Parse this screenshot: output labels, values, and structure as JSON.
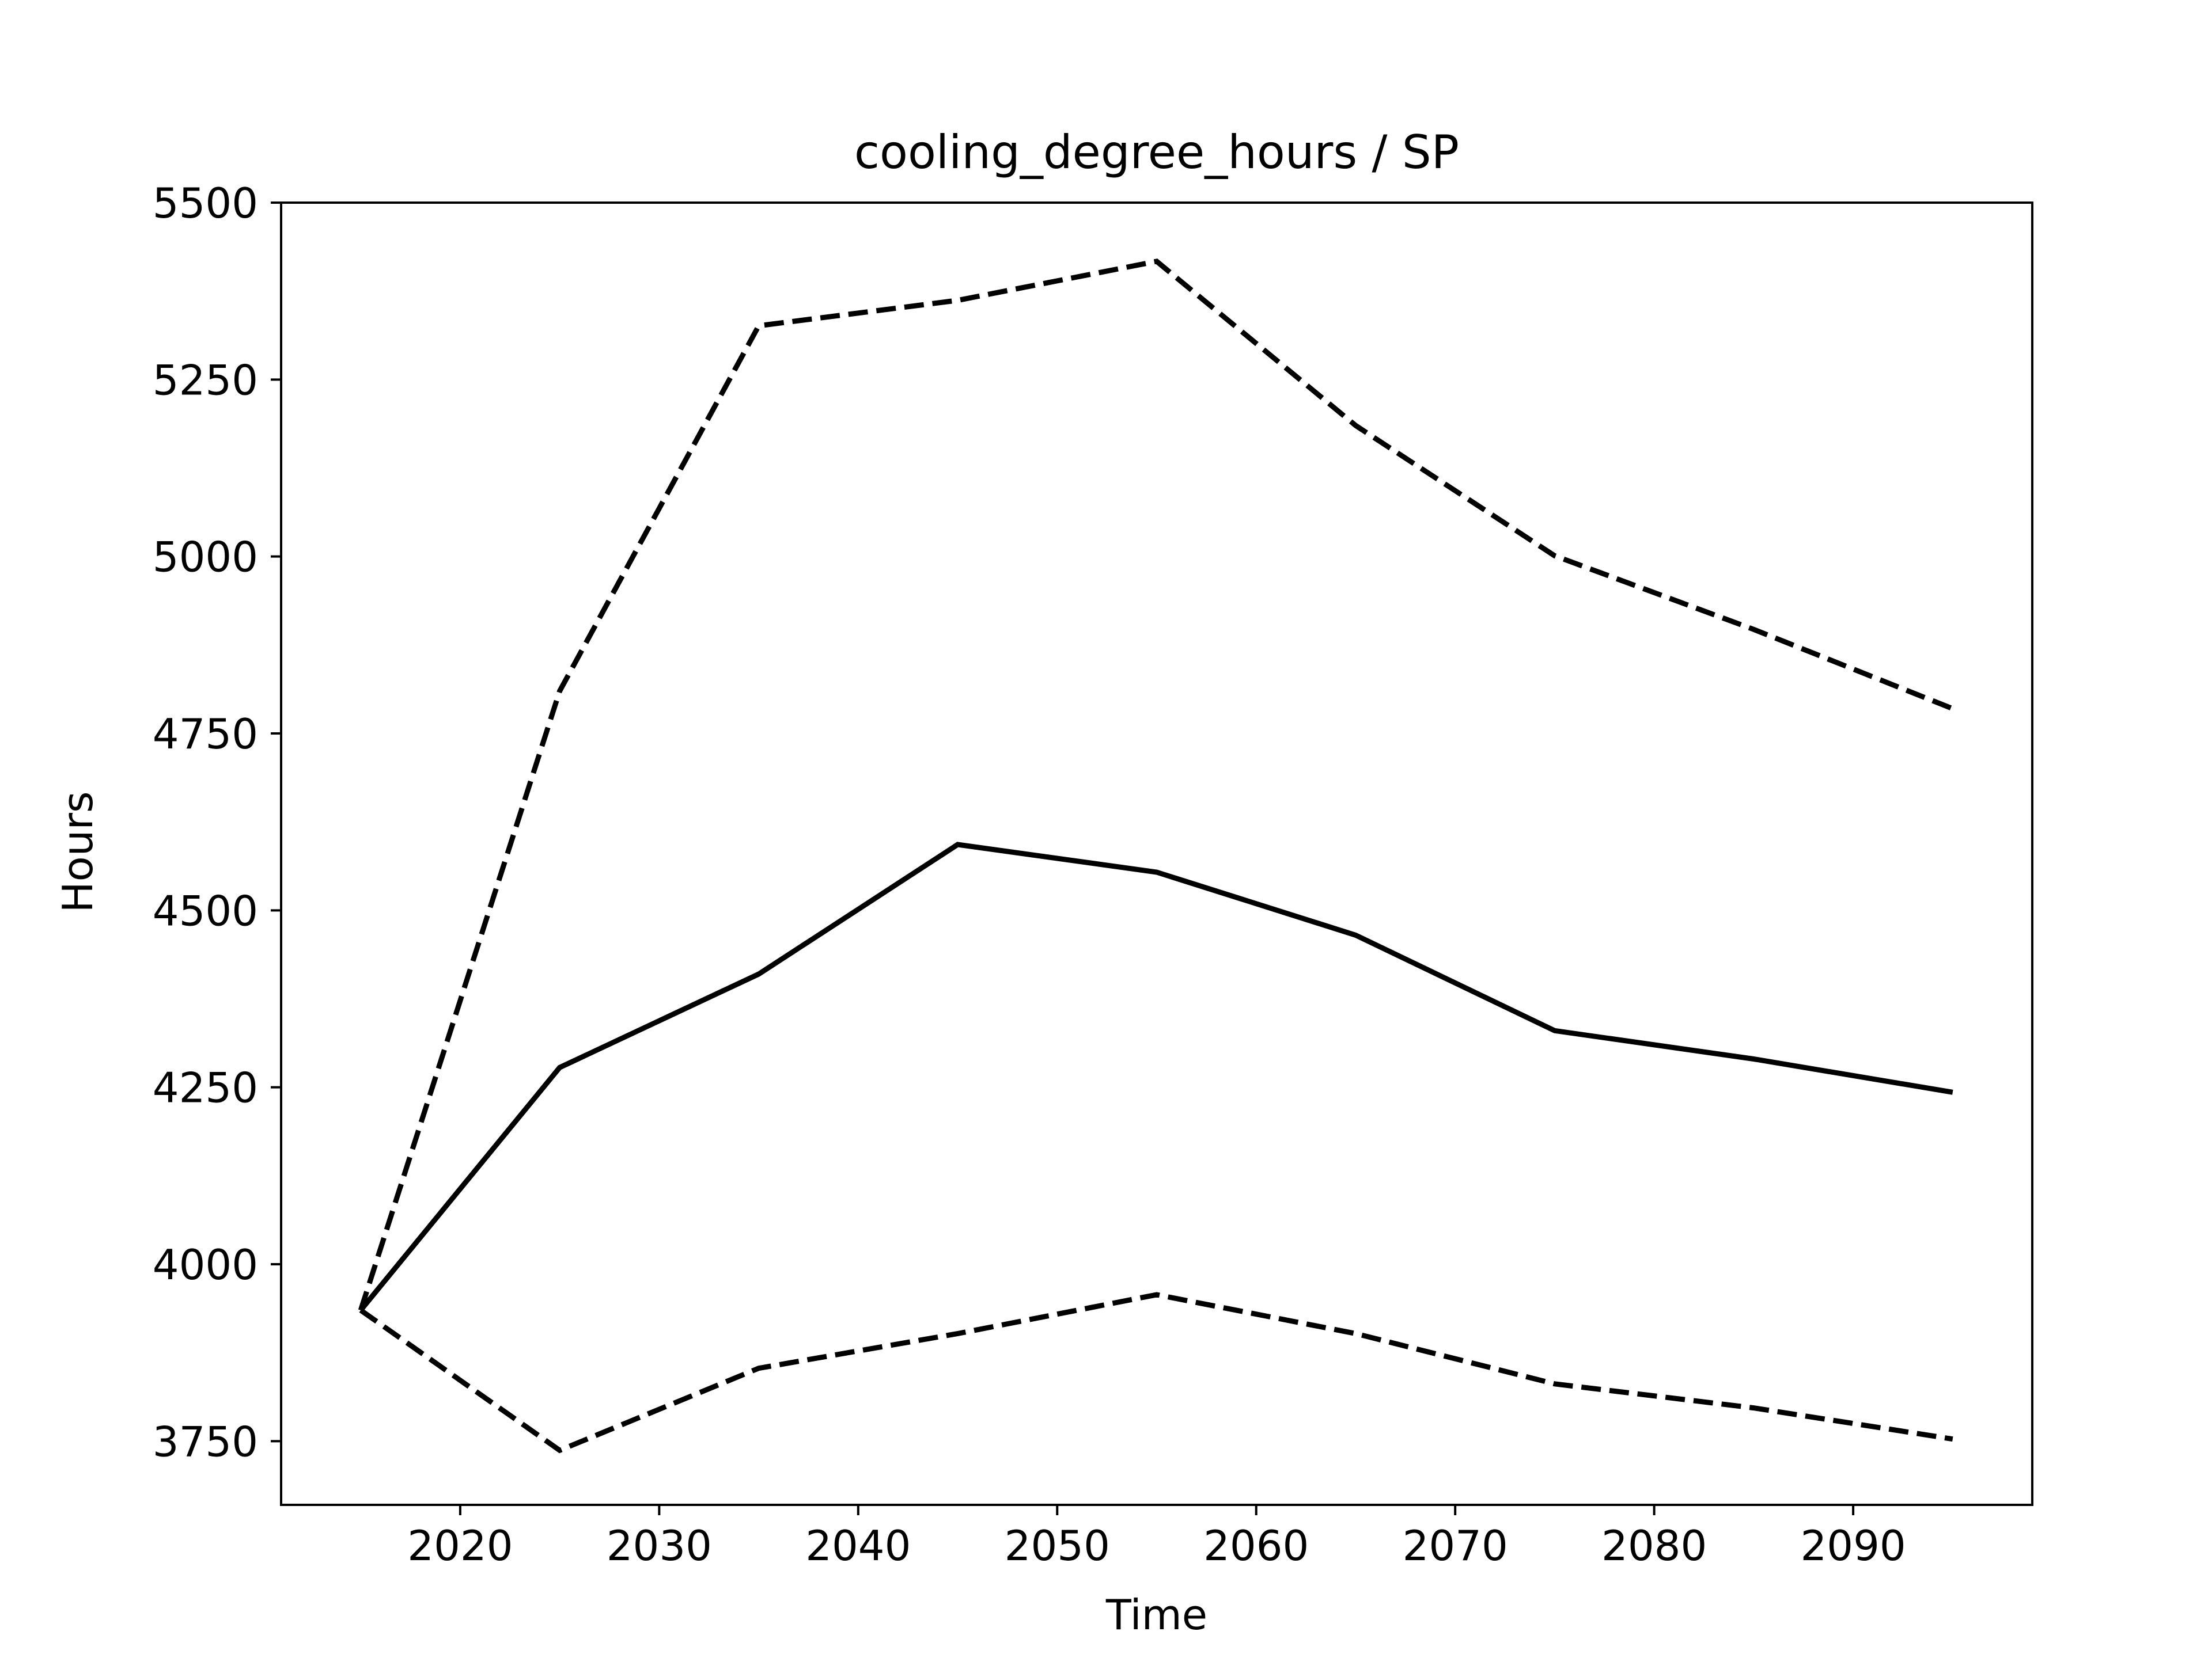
{
  "chart_data": {
    "type": "line",
    "title": "cooling_degree_hours / SP",
    "xlabel": "Time",
    "ylabel": "Hours",
    "xlim": [
      2011,
      2099
    ],
    "ylim": [
      3660,
      5500
    ],
    "xticks": [
      2020,
      2030,
      2040,
      2050,
      2060,
      2070,
      2080,
      2090
    ],
    "xtick_labels": [
      "2020",
      "2030",
      "2040",
      "2050",
      "2060",
      "2070",
      "2080",
      "2090"
    ],
    "yticks": [
      3750,
      4000,
      4250,
      4500,
      4750,
      5000,
      5250,
      5500
    ],
    "ytick_labels": [
      "3750",
      "4000",
      "4250",
      "4500",
      "4750",
      "5000",
      "5250",
      "5500"
    ],
    "grid": false,
    "x": [
      2015,
      2025,
      2035,
      2045,
      2055,
      2065,
      2075,
      2085,
      2095
    ],
    "series": [
      {
        "values": [
          3935,
          4278,
          4410,
          4593,
          4554,
          4465,
          4330,
          4290,
          4243
        ],
        "style": "solid",
        "color": "#000000"
      },
      {
        "values": [
          3935,
          4810,
          5326,
          5362,
          5417,
          5185,
          5001,
          4897,
          4785
        ],
        "style": "dashed",
        "color": "#000000"
      },
      {
        "values": [
          3935,
          3737,
          3853,
          3902,
          3957,
          3902,
          3831,
          3797,
          3753
        ],
        "style": "dashed",
        "color": "#000000"
      }
    ]
  }
}
